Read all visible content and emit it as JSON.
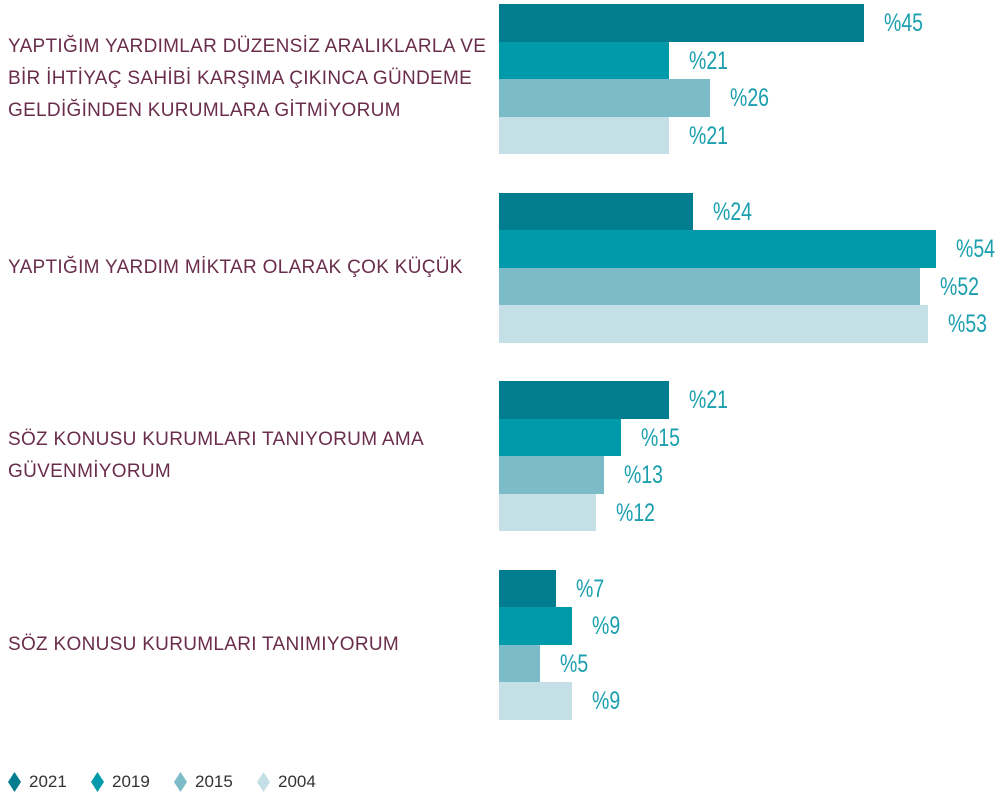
{
  "chart_data": {
    "type": "bar",
    "orientation": "horizontal",
    "categories": [
      "YAPTIĞIM YARDIMLAR DÜZENSİZ ARALIKLARLA VE BİR İHTİYAÇ SAHİBİ KARŞIMA ÇIKINCA GÜNDEME GELDİĞİNDEN KURUMLARA GİTMİYORUM",
      "YAPTIĞIM YARDIM MİKTAR OLARAK ÇOK KÜÇÜK",
      "SÖZ KONUSU KURUMLARI TANIYORUM AMA GÜVENMİYORUM",
      "SÖZ KONUSU KURUMLARI TANIMIYORUM"
    ],
    "series": [
      {
        "name": "2021",
        "color": "#007d8f",
        "values": [
          45,
          24,
          21,
          7
        ],
        "value_labels": [
          "%45",
          "%24",
          "%21",
          "%7"
        ]
      },
      {
        "name": "2019",
        "color": "#009aaa",
        "values": [
          21,
          54,
          15,
          9
        ],
        "value_labels": [
          "%21",
          "%54",
          "%15",
          "%9"
        ]
      },
      {
        "name": "2015",
        "color": "#7bbcc8",
        "values": [
          26,
          52,
          13,
          5
        ],
        "value_labels": [
          "%26",
          "%52",
          "%13",
          "%5"
        ]
      },
      {
        "name": "2004",
        "color": "#c4dfe5",
        "values": [
          21,
          53,
          12,
          9
        ],
        "value_labels": [
          "%21",
          "%53",
          "%12",
          "%9"
        ]
      }
    ],
    "legend": "bottom-left"
  }
}
